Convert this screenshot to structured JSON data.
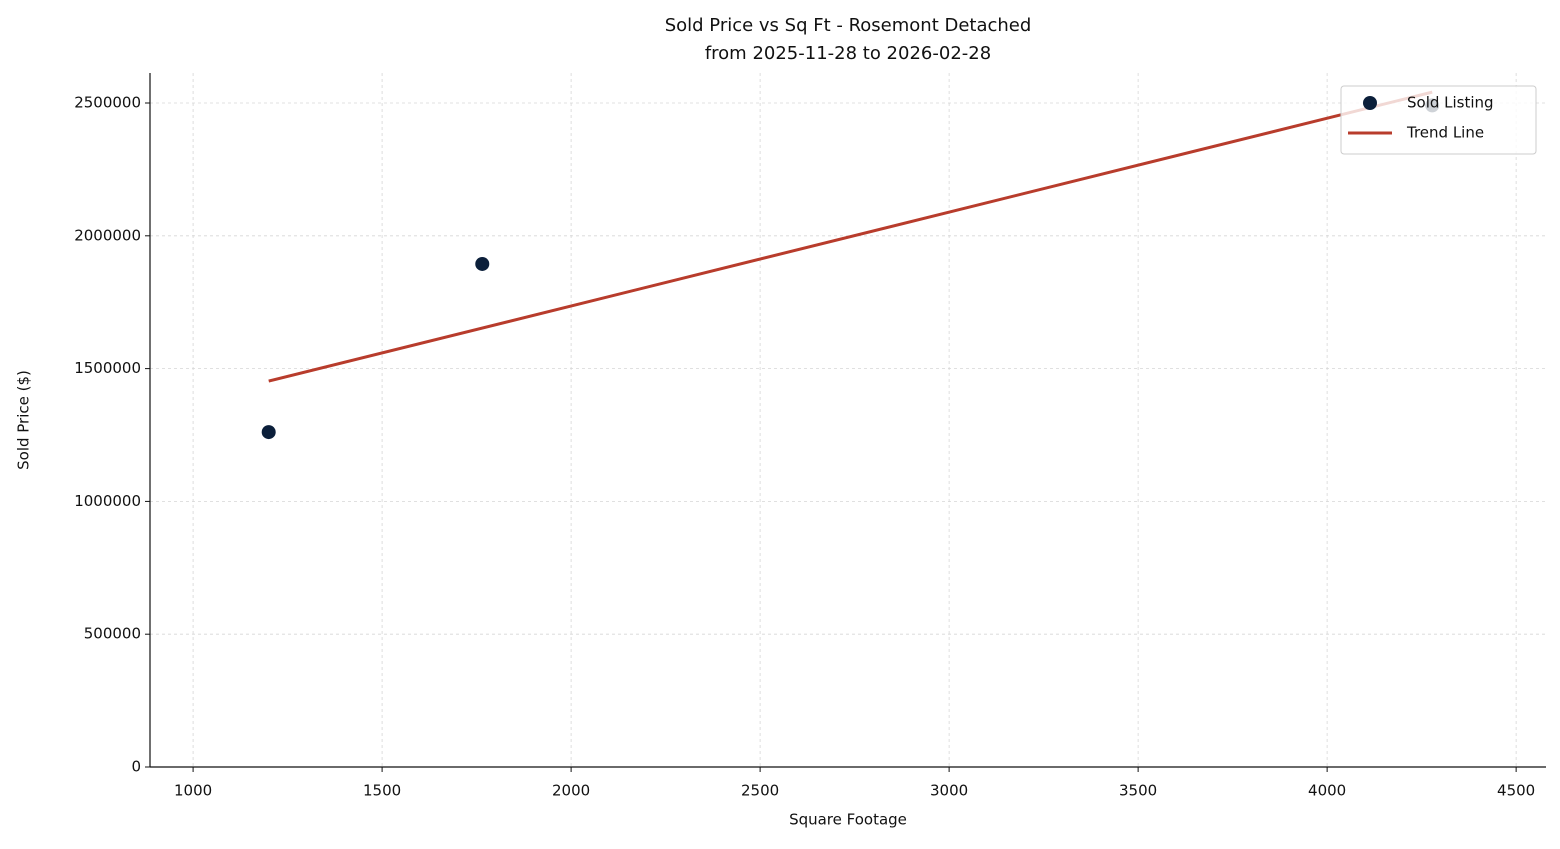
{
  "chart_data": {
    "type": "scatter",
    "title": "Sold Price vs Sq Ft - Rosemont Detached",
    "subtitle": "from 2025-11-28 to 2026-02-28",
    "x_label": "Square Footage",
    "y_label": "Sold Price ($)",
    "series": [
      {
        "name": "Sold Listing",
        "type": "scatter",
        "color": "#0b1f3a",
        "x": [
          1200,
          1765,
          4278
        ],
        "values": [
          1261000,
          1894000,
          2491000
        ]
      },
      {
        "name": "Trend Line",
        "type": "line",
        "color": "#b83c2c",
        "x": [
          1200,
          4278
        ],
        "values": [
          1453000,
          2541000
        ]
      }
    ],
    "xlim": [
      886,
      4579
    ],
    "ylim": [
      0,
      2613000
    ],
    "xticks": [
      1000,
      1500,
      2000,
      2500,
      3000,
      3500,
      4000,
      4500
    ],
    "yticks": [
      0,
      500000,
      1000000,
      1500000,
      2000000,
      2500000
    ],
    "grid": true,
    "legend": "upper right"
  }
}
